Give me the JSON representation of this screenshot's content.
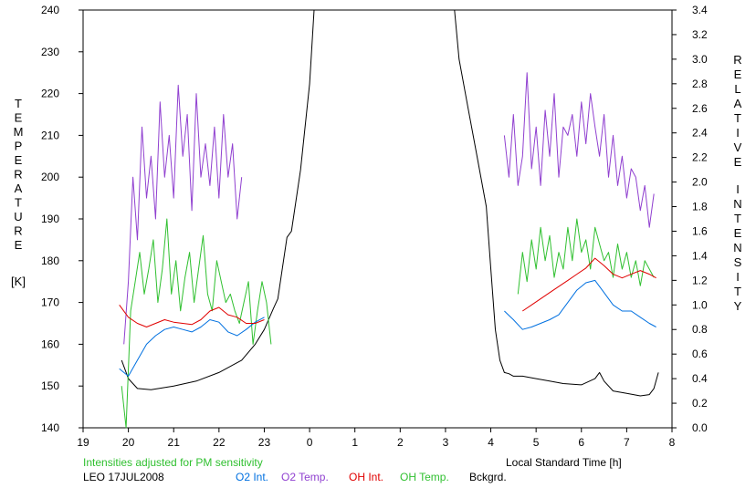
{
  "chart_data": {
    "type": "line",
    "title": "",
    "xlabel": "Local Standard Time [h]",
    "ylabel": "TEMPERATURE [K]",
    "y2label": "RELATIVE INTENSITY",
    "x_ticks": [
      "19",
      "20",
      "21",
      "22",
      "23",
      "0",
      "1",
      "2",
      "3",
      "4",
      "5",
      "6",
      "7",
      "8"
    ],
    "x_range": [
      19,
      32
    ],
    "ylim": [
      140,
      240
    ],
    "y_ticks": [
      140,
      150,
      160,
      170,
      180,
      190,
      200,
      210,
      220,
      230,
      240
    ],
    "y2lim": [
      0.0,
      3.4
    ],
    "y2_ticks": [
      "0.0",
      "0.2",
      "0.4",
      "0.6",
      "0.8",
      "1.0",
      "1.2",
      "1.4",
      "1.6",
      "1.8",
      "2.0",
      "2.2",
      "2.4",
      "2.6",
      "2.8",
      "3.0",
      "3.2",
      "3.4"
    ],
    "note": "Intensities adjusted for PM sensitivity",
    "station": "LEO 17JUL2008",
    "grid": false,
    "legend_position": "bottom",
    "series": [
      {
        "name": "O2 Int.",
        "axis": "right",
        "color": "#0070e0",
        "evening": {
          "x": [
            19.8,
            20.0,
            20.2,
            20.4,
            20.6,
            20.8,
            21.0,
            21.2,
            21.4,
            21.6,
            21.8,
            22.0,
            22.2,
            22.4,
            22.6,
            22.8,
            23.0
          ],
          "y": [
            0.48,
            0.42,
            0.55,
            0.68,
            0.75,
            0.8,
            0.82,
            0.8,
            0.78,
            0.82,
            0.88,
            0.86,
            0.78,
            0.75,
            0.8,
            0.86,
            0.9
          ]
        },
        "morning": {
          "x": [
            4.3,
            4.5,
            4.7,
            4.9,
            5.1,
            5.3,
            5.5,
            5.7,
            5.9,
            6.1,
            6.3,
            6.5,
            6.7,
            6.9,
            7.1,
            7.3,
            7.5,
            7.65
          ],
          "y": [
            0.95,
            0.88,
            0.8,
            0.82,
            0.85,
            0.88,
            0.92,
            1.02,
            1.12,
            1.18,
            1.2,
            1.1,
            1.0,
            0.95,
            0.95,
            0.9,
            0.85,
            0.82
          ]
        }
      },
      {
        "name": "O2 Temp.",
        "axis": "left",
        "color": "#9040d0",
        "evening": {
          "x": [
            19.9,
            20.0,
            20.1,
            20.2,
            20.3,
            20.4,
            20.5,
            20.6,
            20.7,
            20.8,
            20.9,
            21.0,
            21.1,
            21.2,
            21.3,
            21.4,
            21.5,
            21.6,
            21.7,
            21.8,
            21.9,
            22.0,
            22.1,
            22.2,
            22.3,
            22.4,
            22.5
          ],
          "y": [
            160,
            175,
            200,
            185,
            212,
            195,
            205,
            190,
            218,
            200,
            210,
            195,
            222,
            205,
            215,
            192,
            220,
            200,
            208,
            198,
            212,
            195,
            215,
            200,
            208,
            190,
            200
          ]
        },
        "morning": {
          "x": [
            4.3,
            4.4,
            4.5,
            4.6,
            4.7,
            4.8,
            4.9,
            5.0,
            5.1,
            5.2,
            5.3,
            5.4,
            5.5,
            5.6,
            5.7,
            5.8,
            5.9,
            6.0,
            6.1,
            6.2,
            6.3,
            6.4,
            6.5,
            6.6,
            6.7,
            6.8,
            6.9,
            7.0,
            7.1,
            7.2,
            7.3,
            7.4,
            7.5,
            7.6
          ],
          "y": [
            210,
            200,
            215,
            198,
            205,
            225,
            202,
            212,
            198,
            216,
            205,
            220,
            200,
            212,
            210,
            215,
            205,
            218,
            208,
            220,
            212,
            205,
            215,
            200,
            210,
            198,
            205,
            195,
            202,
            200,
            192,
            198,
            188,
            196
          ]
        }
      },
      {
        "name": "OH Int.",
        "axis": "right",
        "color": "#e00000",
        "evening": {
          "x": [
            19.8,
            20.0,
            20.2,
            20.4,
            20.6,
            20.8,
            21.0,
            21.2,
            21.4,
            21.6,
            21.8,
            22.0,
            22.2,
            22.4,
            22.6,
            22.8,
            23.0
          ],
          "y": [
            1.0,
            0.9,
            0.85,
            0.82,
            0.85,
            0.88,
            0.86,
            0.85,
            0.84,
            0.88,
            0.95,
            0.98,
            0.92,
            0.9,
            0.85,
            0.85,
            0.88
          ]
        },
        "morning": {
          "x": [
            4.7,
            4.9,
            5.1,
            5.3,
            5.5,
            5.7,
            5.9,
            6.1,
            6.3,
            6.5,
            6.7,
            6.9,
            7.1,
            7.3,
            7.5,
            7.65
          ],
          "y": [
            0.95,
            1.0,
            1.05,
            1.1,
            1.15,
            1.2,
            1.25,
            1.3,
            1.38,
            1.32,
            1.25,
            1.22,
            1.25,
            1.28,
            1.25,
            1.22
          ]
        }
      },
      {
        "name": "OH Temp.",
        "axis": "left",
        "color": "#30c030",
        "evening": {
          "x": [
            19.85,
            19.95,
            20.05,
            20.15,
            20.25,
            20.35,
            20.45,
            20.55,
            20.65,
            20.75,
            20.85,
            20.95,
            21.05,
            21.15,
            21.25,
            21.35,
            21.45,
            21.55,
            21.65,
            21.75,
            21.85,
            21.95,
            22.05,
            22.15,
            22.25,
            22.35,
            22.45,
            22.55,
            22.65,
            22.75,
            22.85,
            22.95,
            23.05,
            23.15
          ],
          "y": [
            150,
            140,
            168,
            175,
            182,
            172,
            178,
            185,
            170,
            178,
            190,
            172,
            180,
            168,
            176,
            182,
            170,
            178,
            186,
            172,
            168,
            180,
            175,
            170,
            172,
            168,
            165,
            170,
            175,
            160,
            168,
            175,
            170,
            160
          ]
        },
        "morning": {
          "x": [
            4.6,
            4.7,
            4.8,
            4.9,
            5.0,
            5.1,
            5.2,
            5.3,
            5.4,
            5.5,
            5.6,
            5.7,
            5.8,
            5.9,
            6.0,
            6.1,
            6.2,
            6.3,
            6.4,
            6.5,
            6.6,
            6.7,
            6.8,
            6.9,
            7.0,
            7.1,
            7.2,
            7.3,
            7.4,
            7.5,
            7.6
          ],
          "y": [
            172,
            182,
            175,
            185,
            178,
            188,
            180,
            186,
            176,
            182,
            178,
            188,
            180,
            190,
            182,
            185,
            178,
            188,
            184,
            180,
            182,
            176,
            184,
            178,
            182,
            176,
            180,
            174,
            180,
            178,
            176
          ]
        }
      },
      {
        "name": "Bckgrd.",
        "axis": "right",
        "color": "#000000",
        "x": [
          19.85,
          20.0,
          20.2,
          20.5,
          21.0,
          21.5,
          22.0,
          22.5,
          22.8,
          23.0,
          23.2,
          23.3,
          23.5,
          23.6,
          23.8,
          24.0,
          24.1,
          27.2,
          27.3,
          27.5,
          27.7,
          27.9,
          28.0,
          28.1,
          28.2,
          28.3,
          28.4,
          28.5,
          28.7,
          29.0,
          29.3,
          29.6,
          30.0,
          30.3,
          30.4,
          30.5,
          30.7,
          31.0,
          31.3,
          31.5,
          31.6,
          31.7
        ],
        "y": [
          0.55,
          0.4,
          0.32,
          0.31,
          0.34,
          0.38,
          0.45,
          0.55,
          0.68,
          0.8,
          0.97,
          1.05,
          1.55,
          1.6,
          2.1,
          2.8,
          3.4,
          3.4,
          3.0,
          2.6,
          2.2,
          1.8,
          1.3,
          0.8,
          0.55,
          0.45,
          0.44,
          0.42,
          0.42,
          0.4,
          0.38,
          0.36,
          0.35,
          0.4,
          0.45,
          0.38,
          0.3,
          0.28,
          0.26,
          0.27,
          0.32,
          0.45
        ]
      }
    ]
  }
}
